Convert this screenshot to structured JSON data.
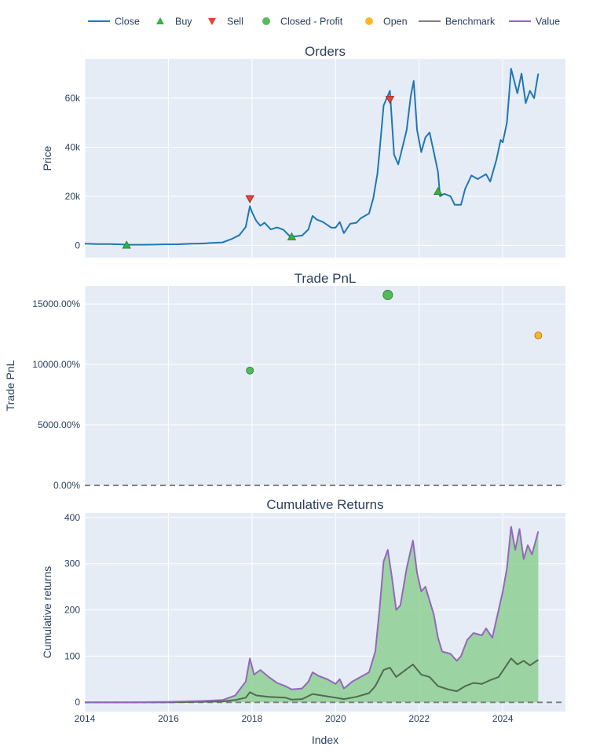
{
  "colors": {
    "plot_bg": "#e5ecf6",
    "grid": "#ffffff",
    "close": "#1f77b4",
    "buy": "#37b13f",
    "sell": "#ea4335",
    "closed_profit": "#37b13f",
    "open": "#ffaa00",
    "benchmark": "#7f7f7f",
    "value": "#9467bd",
    "fill_green": "#8fcf93"
  },
  "legend": {
    "items": [
      {
        "label": "Close",
        "icon": "line-icon",
        "color": "#1f77b4"
      },
      {
        "label": "Buy",
        "icon": "triangle-up-icon",
        "color": "#37b13f"
      },
      {
        "label": "Sell",
        "icon": "triangle-down-icon",
        "color": "#ea4335"
      },
      {
        "label": "Closed - Profit",
        "icon": "circle-icon",
        "color": "#37b13f"
      },
      {
        "label": "Open",
        "icon": "circle-icon",
        "color": "#ffaa00"
      },
      {
        "label": "Benchmark",
        "icon": "line-icon",
        "color": "#7f7f7f"
      },
      {
        "label": "Value",
        "icon": "line-icon",
        "color": "#9467bd"
      }
    ]
  },
  "xaxis": {
    "title": "Index",
    "range": [
      2014.0,
      2025.5
    ],
    "ticks": [
      2014,
      2016,
      2018,
      2020,
      2022,
      2024
    ],
    "tick_labels": [
      "2014",
      "2016",
      "2018",
      "2020",
      "2022",
      "2024"
    ]
  },
  "chart_data": [
    {
      "type": "line",
      "title": "Orders",
      "ylabel": "Price",
      "ylim": [
        -5000,
        76000
      ],
      "yticks": [
        0,
        20000,
        40000,
        60000
      ],
      "ytick_labels": [
        "0",
        "20k",
        "40k",
        "60k"
      ],
      "series": [
        {
          "name": "Close",
          "points": [
            [
              2014.0,
              700
            ],
            [
              2014.3,
              500
            ],
            [
              2014.6,
              550
            ],
            [
              2014.9,
              350
            ],
            [
              2015.0,
              260
            ],
            [
              2015.3,
              240
            ],
            [
              2015.6,
              270
            ],
            [
              2015.9,
              420
            ],
            [
              2016.2,
              410
            ],
            [
              2016.5,
              650
            ],
            [
              2016.8,
              720
            ],
            [
              2017.0,
              960
            ],
            [
              2017.3,
              1200
            ],
            [
              2017.5,
              2500
            ],
            [
              2017.7,
              4200
            ],
            [
              2017.85,
              7500
            ],
            [
              2017.95,
              16000
            ],
            [
              2018.0,
              13500
            ],
            [
              2018.1,
              10000
            ],
            [
              2018.2,
              8000
            ],
            [
              2018.3,
              9200
            ],
            [
              2018.45,
              6500
            ],
            [
              2018.6,
              7300
            ],
            [
              2018.75,
              6400
            ],
            [
              2018.9,
              3800
            ],
            [
              2019.0,
              3600
            ],
            [
              2019.2,
              4000
            ],
            [
              2019.35,
              6500
            ],
            [
              2019.45,
              12000
            ],
            [
              2019.55,
              10500
            ],
            [
              2019.7,
              9500
            ],
            [
              2019.9,
              7200
            ],
            [
              2020.0,
              7200
            ],
            [
              2020.1,
              9500
            ],
            [
              2020.2,
              5000
            ],
            [
              2020.35,
              8800
            ],
            [
              2020.5,
              9200
            ],
            [
              2020.6,
              11000
            ],
            [
              2020.8,
              13000
            ],
            [
              2020.9,
              19000
            ],
            [
              2021.0,
              29000
            ],
            [
              2021.05,
              38000
            ],
            [
              2021.15,
              57000
            ],
            [
              2021.3,
              63000
            ],
            [
              2021.4,
              37000
            ],
            [
              2021.5,
              33000
            ],
            [
              2021.6,
              40000
            ],
            [
              2021.7,
              47000
            ],
            [
              2021.8,
              61000
            ],
            [
              2021.87,
              67000
            ],
            [
              2021.95,
              47000
            ],
            [
              2022.05,
              38000
            ],
            [
              2022.15,
              44000
            ],
            [
              2022.25,
              46000
            ],
            [
              2022.35,
              38000
            ],
            [
              2022.45,
              30000
            ],
            [
              2022.5,
              20000
            ],
            [
              2022.6,
              21000
            ],
            [
              2022.75,
              20000
            ],
            [
              2022.85,
              16500
            ],
            [
              2023.0,
              16500
            ],
            [
              2023.1,
              23000
            ],
            [
              2023.25,
              28500
            ],
            [
              2023.4,
              27000
            ],
            [
              2023.6,
              29000
            ],
            [
              2023.7,
              26000
            ],
            [
              2023.85,
              35000
            ],
            [
              2023.95,
              43000
            ],
            [
              2024.0,
              42000
            ],
            [
              2024.1,
              50000
            ],
            [
              2024.2,
              72000
            ],
            [
              2024.35,
              62000
            ],
            [
              2024.45,
              70000
            ],
            [
              2024.55,
              58000
            ],
            [
              2024.65,
              63000
            ],
            [
              2024.75,
              60000
            ],
            [
              2024.85,
              70000
            ]
          ]
        },
        {
          "name": "Buy",
          "x": [
            2015.0,
            2018.95,
            2022.45
          ],
          "y": [
            100,
            3500,
            22000
          ]
        },
        {
          "name": "Sell",
          "x": [
            2017.95,
            2021.3
          ],
          "y": [
            19000,
            59500
          ]
        }
      ]
    },
    {
      "type": "scatter",
      "title": "Trade PnL",
      "ylabel": "Trade PnL",
      "ylim": [
        0,
        16500
      ],
      "yticks": [
        0,
        5000,
        10000,
        15000
      ],
      "ytick_labels": [
        "0.00%",
        "5000.00%",
        "10000.00%",
        "15000.00%"
      ],
      "baseline": 0,
      "series": [
        {
          "name": "Closed - Profit",
          "x": [
            2017.95,
            2021.25
          ],
          "y": [
            9500,
            15750
          ]
        },
        {
          "name": "Open",
          "x": [
            2024.85
          ],
          "y": [
            12400
          ]
        }
      ]
    },
    {
      "type": "area",
      "title": "Cumulative Returns",
      "ylabel": "Cumulative returns",
      "ylim": [
        -20,
        410
      ],
      "yticks": [
        0,
        100,
        200,
        300,
        400
      ],
      "ytick_labels": [
        "0",
        "100",
        "200",
        "300",
        "400"
      ],
      "baseline": 0,
      "series": [
        {
          "name": "Value",
          "points": [
            [
              2014.0,
              0
            ],
            [
              2015.0,
              0
            ],
            [
              2016.0,
              1
            ],
            [
              2016.8,
              3
            ],
            [
              2017.3,
              5
            ],
            [
              2017.6,
              15
            ],
            [
              2017.85,
              45
            ],
            [
              2017.95,
              95
            ],
            [
              2018.05,
              60
            ],
            [
              2018.2,
              70
            ],
            [
              2018.4,
              55
            ],
            [
              2018.6,
              42
            ],
            [
              2018.8,
              35
            ],
            [
              2018.95,
              28
            ],
            [
              2019.2,
              30
            ],
            [
              2019.35,
              45
            ],
            [
              2019.45,
              65
            ],
            [
              2019.6,
              57
            ],
            [
              2019.8,
              50
            ],
            [
              2020.0,
              40
            ],
            [
              2020.1,
              50
            ],
            [
              2020.2,
              30
            ],
            [
              2020.4,
              45
            ],
            [
              2020.6,
              55
            ],
            [
              2020.8,
              65
            ],
            [
              2020.95,
              110
            ],
            [
              2021.05,
              200
            ],
            [
              2021.15,
              305
            ],
            [
              2021.25,
              330
            ],
            [
              2021.35,
              270
            ],
            [
              2021.45,
              200
            ],
            [
              2021.55,
              210
            ],
            [
              2021.7,
              290
            ],
            [
              2021.85,
              350
            ],
            [
              2021.95,
              280
            ],
            [
              2022.05,
              240
            ],
            [
              2022.15,
              250
            ],
            [
              2022.25,
              220
            ],
            [
              2022.35,
              190
            ],
            [
              2022.45,
              140
            ],
            [
              2022.55,
              110
            ],
            [
              2022.75,
              105
            ],
            [
              2022.9,
              90
            ],
            [
              2023.0,
              100
            ],
            [
              2023.15,
              135
            ],
            [
              2023.3,
              150
            ],
            [
              2023.5,
              145
            ],
            [
              2023.6,
              160
            ],
            [
              2023.75,
              140
            ],
            [
              2023.9,
              200
            ],
            [
              2024.0,
              240
            ],
            [
              2024.1,
              290
            ],
            [
              2024.2,
              380
            ],
            [
              2024.3,
              330
            ],
            [
              2024.4,
              375
            ],
            [
              2024.5,
              310
            ],
            [
              2024.6,
              340
            ],
            [
              2024.7,
              320
            ],
            [
              2024.85,
              370
            ]
          ]
        },
        {
          "name": "Benchmark",
          "points": [
            [
              2014.0,
              0
            ],
            [
              2015.0,
              0
            ],
            [
              2016.0,
              0
            ],
            [
              2016.8,
              1
            ],
            [
              2017.3,
              2
            ],
            [
              2017.6,
              5
            ],
            [
              2017.85,
              10
            ],
            [
              2017.95,
              22
            ],
            [
              2018.1,
              15
            ],
            [
              2018.4,
              12
            ],
            [
              2018.8,
              10
            ],
            [
              2018.95,
              6
            ],
            [
              2019.2,
              7
            ],
            [
              2019.45,
              18
            ],
            [
              2019.8,
              13
            ],
            [
              2020.0,
              10
            ],
            [
              2020.2,
              7
            ],
            [
              2020.5,
              12
            ],
            [
              2020.8,
              20
            ],
            [
              2020.95,
              35
            ],
            [
              2021.15,
              70
            ],
            [
              2021.3,
              75
            ],
            [
              2021.45,
              55
            ],
            [
              2021.7,
              72
            ],
            [
              2021.85,
              82
            ],
            [
              2022.05,
              60
            ],
            [
              2022.25,
              55
            ],
            [
              2022.45,
              35
            ],
            [
              2022.7,
              28
            ],
            [
              2022.9,
              24
            ],
            [
              2023.1,
              35
            ],
            [
              2023.3,
              42
            ],
            [
              2023.5,
              40
            ],
            [
              2023.7,
              48
            ],
            [
              2023.9,
              55
            ],
            [
              2024.0,
              68
            ],
            [
              2024.2,
              95
            ],
            [
              2024.35,
              82
            ],
            [
              2024.5,
              90
            ],
            [
              2024.65,
              80
            ],
            [
              2024.85,
              92
            ]
          ]
        }
      ]
    }
  ]
}
